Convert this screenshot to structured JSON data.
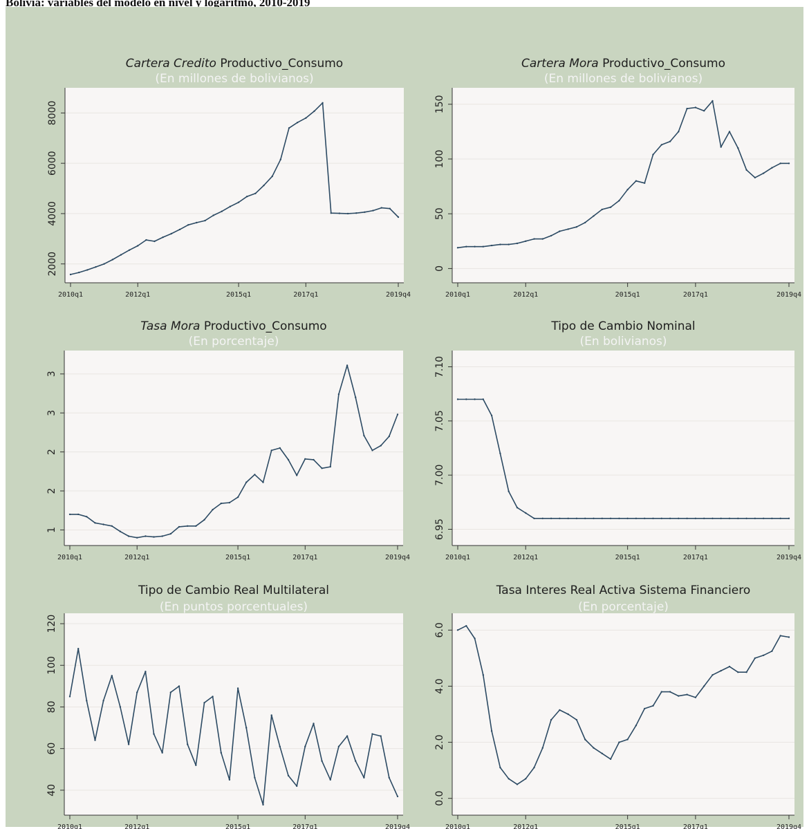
{
  "figure_title": "Bolivia: variables del modelo en nivel y logaritmo, 2010-2019",
  "colors": {
    "background": "#c9d5c0",
    "plot_area": "#f8f6f5",
    "line": "#2c4a63",
    "subtitle": "#f4f4f4"
  },
  "chart_data": [
    {
      "type": "line",
      "title_italic": "Cartera Credito",
      "title": "Productivo_Consumo",
      "subtitle": "(En millones de bolivianos)",
      "xlabel": "",
      "ylabel": "",
      "x_ticks": [
        "2010q1",
        "2012q1",
        "2015q1",
        "2017q1",
        "2019q4"
      ],
      "y_ticks": [
        "2000",
        "4000",
        "6000",
        "8000"
      ],
      "ylim": [
        1250,
        9000
      ],
      "grid": true,
      "series": [
        {
          "values": [
            1580,
            1660,
            1760,
            1880,
            2000,
            2170,
            2360,
            2550,
            2720,
            2950,
            2900,
            3060,
            3200,
            3370,
            3550,
            3640,
            3720,
            3930,
            4090,
            4280,
            4450,
            4680,
            4800,
            5120,
            5480,
            6150,
            7400,
            7620,
            7800,
            8070,
            8400,
            4020,
            4010,
            4000,
            4020,
            4060,
            4120,
            4230,
            4200,
            3860
          ]
        }
      ]
    },
    {
      "type": "line",
      "title_italic": "Cartera Mora",
      "title": "Productivo_Consumo",
      "subtitle": "(En millones de bolivianos)",
      "xlabel": "",
      "ylabel": "",
      "x_ticks": [
        "2010q1",
        "2012q1",
        "2015q1",
        "2017q1",
        "2019q4"
      ],
      "y_ticks": [
        "0",
        "50",
        "100",
        "150"
      ],
      "ylim": [
        -13,
        165
      ],
      "grid": true,
      "series": [
        {
          "values": [
            19,
            20,
            20,
            20,
            21,
            22,
            22,
            23,
            25,
            27,
            27,
            30,
            34,
            36,
            38,
            42,
            48,
            54,
            56,
            62,
            72,
            80,
            78,
            104,
            113,
            116,
            125,
            146,
            147,
            144,
            153,
            111,
            125,
            110,
            90,
            83,
            87,
            92,
            96,
            96
          ]
        }
      ]
    },
    {
      "type": "line",
      "title_italic": "Tasa Mora",
      "title": "Productivo_Consumo",
      "subtitle": "(En porcentaje)",
      "xlabel": "",
      "ylabel": "",
      "x_ticks": [
        "2010q1",
        "2012q1",
        "2015q1",
        "2017q1",
        "2019q4"
      ],
      "y_ticks": [
        "1",
        "2",
        "2",
        "3",
        "3"
      ],
      "ytick_positions": [
        1.0,
        1.5,
        2.0,
        2.5,
        3.0
      ],
      "ylim": [
        0.8,
        3.3
      ],
      "grid": true,
      "series": [
        {
          "values": [
            1.2,
            1.2,
            1.17,
            1.09,
            1.07,
            1.05,
            0.98,
            0.92,
            0.9,
            0.92,
            0.91,
            0.92,
            0.95,
            1.04,
            1.05,
            1.05,
            1.13,
            1.26,
            1.34,
            1.35,
            1.42,
            1.61,
            1.71,
            1.61,
            2.02,
            2.05,
            1.9,
            1.7,
            1.91,
            1.9,
            1.79,
            1.81,
            2.74,
            3.11,
            2.7,
            2.21,
            2.02,
            2.08,
            2.2,
            2.48
          ]
        }
      ]
    },
    {
      "type": "line",
      "title_italic": "",
      "title": "Tipo de Cambio Nominal",
      "subtitle": "(En bolivianos)",
      "xlabel": "",
      "ylabel": "",
      "x_ticks": [
        "2010q1",
        "2012q1",
        "2015q1",
        "2017q1",
        "2019q4"
      ],
      "y_ticks": [
        "6.95",
        "7.00",
        "7.05",
        "7.10"
      ],
      "ylim": [
        6.935,
        7.115
      ],
      "grid": true,
      "series": [
        {
          "values": [
            7.07,
            7.07,
            7.07,
            7.07,
            7.055,
            7.02,
            6.985,
            6.97,
            6.965,
            6.96,
            6.96,
            6.96,
            6.96,
            6.96,
            6.96,
            6.96,
            6.96,
            6.96,
            6.96,
            6.96,
            6.96,
            6.96,
            6.96,
            6.96,
            6.96,
            6.96,
            6.96,
            6.96,
            6.96,
            6.96,
            6.96,
            6.96,
            6.96,
            6.96,
            6.96,
            6.96,
            6.96,
            6.96,
            6.96,
            6.96
          ]
        }
      ]
    },
    {
      "type": "line",
      "title_italic": "",
      "title": "Tipo de Cambio Real Multilateral",
      "subtitle": "(En puntos porcentuales)",
      "xlabel": "",
      "ylabel": "",
      "x_ticks": [
        "2010q1",
        "2012q1",
        "2015q1",
        "2017q1",
        "2019q4"
      ],
      "y_ticks": [
        "40",
        "60",
        "80",
        "100",
        "120"
      ],
      "ylim": [
        28,
        125
      ],
      "grid": true,
      "series": [
        {
          "values": [
            85,
            108,
            83,
            64,
            83,
            95,
            80,
            62,
            87,
            97,
            67,
            58,
            87,
            90,
            62,
            52,
            82,
            85,
            58,
            45,
            89,
            70,
            46,
            33,
            76,
            61,
            47,
            42,
            61,
            72,
            54,
            45,
            61,
            66,
            54,
            46,
            67,
            66,
            46,
            37
          ]
        }
      ]
    },
    {
      "type": "line",
      "title_italic": "",
      "title": "Tasa Interes Real Activa Sistema Financiero",
      "subtitle": "(En porcentaje)",
      "xlabel": "",
      "ylabel": "",
      "x_ticks": [
        "2010q1",
        "2012q1",
        "2015q1",
        "2017q1",
        "2019q4"
      ],
      "y_ticks": [
        "0.0",
        "2.0",
        "4.0",
        "6.0"
      ],
      "ylim": [
        -0.6,
        6.6
      ],
      "grid": true,
      "series": [
        {
          "values": [
            6.0,
            6.15,
            5.7,
            4.4,
            2.4,
            1.1,
            0.7,
            0.5,
            0.7,
            1.1,
            1.8,
            2.8,
            3.15,
            3.0,
            2.8,
            2.1,
            1.8,
            1.6,
            1.4,
            2.0,
            2.1,
            2.6,
            3.2,
            3.3,
            3.8,
            3.8,
            3.65,
            3.7,
            3.6,
            4.0,
            4.4,
            4.55,
            4.7,
            4.5,
            4.5,
            5.0,
            5.1,
            5.25,
            5.8,
            5.75
          ]
        }
      ]
    }
  ]
}
